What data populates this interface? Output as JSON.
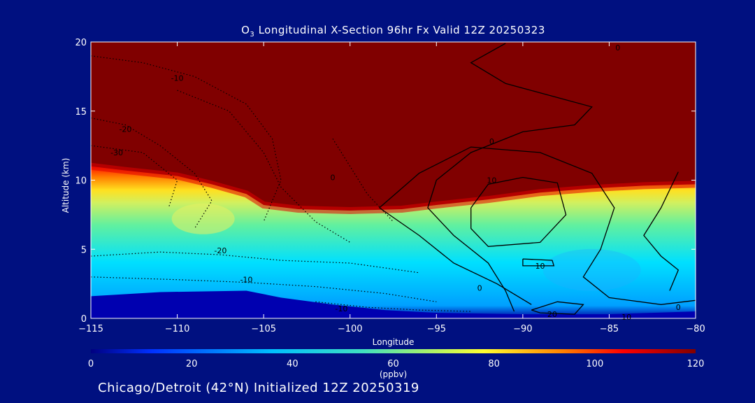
{
  "chart_data": {
    "type": "heatmap",
    "title_prefix": "O",
    "title_sub": "3",
    "title_rest": " Longitudinal X-Section 96hr  Fx Valid 12Z 20250323",
    "xlabel": "Longitude",
    "ylabel": "Altitude (km)",
    "xlim": [
      -115,
      -80
    ],
    "ylim": [
      0,
      20
    ],
    "x_ticks": [
      -115,
      -110,
      -105,
      -100,
      -95,
      -90,
      -85,
      -80
    ],
    "x_tick_labels": [
      "−115",
      "−110",
      "−105",
      "−100",
      "−95",
      "−90",
      "−85",
      "−80"
    ],
    "y_ticks": [
      0,
      5,
      10,
      15,
      20
    ],
    "y_tick_labels": [
      "0",
      "5",
      "10",
      "15",
      "20"
    ],
    "colorbar": {
      "min": 0,
      "max": 120,
      "ticks": [
        0,
        20,
        40,
        60,
        80,
        100,
        120
      ],
      "tick_labels": [
        "0",
        "20",
        "40",
        "60",
        "80",
        "100",
        "120"
      ],
      "units": "(ppbv)"
    },
    "tropopause_height_km": [
      {
        "lon": -115,
        "alt": 11.0
      },
      {
        "lon": -113,
        "alt": 10.7
      },
      {
        "lon": -110,
        "alt": 10.3
      },
      {
        "lon": -108,
        "alt": 9.7
      },
      {
        "lon": -106,
        "alt": 9.0
      },
      {
        "lon": -105,
        "alt": 8.2
      },
      {
        "lon": -103,
        "alt": 7.9
      },
      {
        "lon": -100,
        "alt": 7.8
      },
      {
        "lon": -97,
        "alt": 7.9
      },
      {
        "lon": -95,
        "alt": 8.2
      },
      {
        "lon": -92,
        "alt": 8.6
      },
      {
        "lon": -89,
        "alt": 9.1
      },
      {
        "lon": -86,
        "alt": 9.4
      },
      {
        "lon": -83,
        "alt": 9.6
      },
      {
        "lon": -80,
        "alt": 9.7
      }
    ],
    "surface_boundary_km": [
      {
        "lon": -115,
        "alt": 1.6
      },
      {
        "lon": -111,
        "alt": 1.9
      },
      {
        "lon": -106,
        "alt": 2.0
      },
      {
        "lon": -104,
        "alt": 1.5
      },
      {
        "lon": -101,
        "alt": 1.0
      },
      {
        "lon": -98,
        "alt": 0.6
      },
      {
        "lon": -95,
        "alt": 0.4
      },
      {
        "lon": -90,
        "alt": 0.3
      },
      {
        "lon": -85,
        "alt": 0.3
      },
      {
        "lon": -80,
        "alt": 0.5
      }
    ],
    "contour_labels": [
      {
        "text": "0",
        "lon": -84.5,
        "alt": 19.6
      },
      {
        "text": "-10",
        "lon": -110,
        "alt": 17.4
      },
      {
        "text": "-20",
        "lon": -113,
        "alt": 13.7
      },
      {
        "text": "-30",
        "lon": -113.5,
        "alt": 12.0
      },
      {
        "text": "0",
        "lon": -101,
        "alt": 10.2
      },
      {
        "text": "0",
        "lon": -91.8,
        "alt": 12.8
      },
      {
        "text": "10",
        "lon": -91.8,
        "alt": 10.0
      },
      {
        "text": "10",
        "lon": -89,
        "alt": 3.8
      },
      {
        "text": "-20",
        "lon": -107.5,
        "alt": 4.9
      },
      {
        "text": "-10",
        "lon": -106,
        "alt": 2.8
      },
      {
        "text": "0",
        "lon": -92.5,
        "alt": 2.2
      },
      {
        "text": "-10",
        "lon": -100.5,
        "alt": 0.7
      },
      {
        "text": "20",
        "lon": -88.3,
        "alt": 0.3
      },
      {
        "text": "10",
        "lon": -84,
        "alt": 0.1
      },
      {
        "text": "0",
        "lon": -81,
        "alt": 0.8
      }
    ]
  },
  "footer": "Chicago/Detroit (42°N) Initialized 12Z 20250319",
  "colors": {
    "background": "#001080",
    "stratosphere": "#800000",
    "surface": "#0000b0",
    "colorscale": [
      "#0000a0",
      "#0040ff",
      "#00c0ff",
      "#40e0c0",
      "#a0f070",
      "#ffff30",
      "#ff8000",
      "#ff0000",
      "#800000"
    ]
  }
}
